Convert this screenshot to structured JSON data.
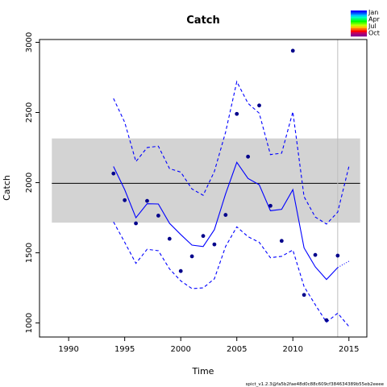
{
  "chart_data": {
    "type": "line",
    "title": "Catch",
    "xlabel": "Time",
    "ylabel": "Catch",
    "xlim": [
      1987.4,
      2016.6
    ],
    "ylim": [
      900,
      3020
    ],
    "x_ticks": [
      1990,
      1995,
      2000,
      2005,
      2010,
      2015
    ],
    "y_ticks": [
      1000,
      1500,
      2000,
      2500,
      3000
    ],
    "grid": false,
    "reference_line": 1995,
    "reference_band": [
      1715,
      2315
    ],
    "reference_band_x": [
      1988.5,
      2016.0
    ],
    "vertical_line_x": 2014,
    "colors": {
      "series": "#0000ff",
      "points": "#00008b",
      "band": "#d3d3d3",
      "vline": "#bebebe"
    },
    "series": [
      {
        "style": "solid",
        "x": [
          1994,
          1995,
          1996,
          1997,
          1998,
          1999,
          2000,
          2001,
          2002,
          2003,
          2004,
          2005,
          2006,
          2007,
          2008,
          2009,
          2010,
          2011,
          2012,
          2013,
          2014
        ],
        "values": [
          2115,
          1950,
          1750,
          1850,
          1848,
          1710,
          1630,
          1555,
          1545,
          1665,
          1920,
          2145,
          2030,
          1985,
          1800,
          1810,
          1950,
          1535,
          1400,
          1310,
          1395
        ]
      },
      {
        "style": "dotted",
        "x": [
          2014,
          2015
        ],
        "values": [
          1395,
          1440
        ]
      },
      {
        "style": "dashed",
        "x": [
          1994,
          1995,
          1996,
          1997,
          1998,
          1999,
          2000,
          2001,
          2002,
          2003,
          2004,
          2005,
          2006,
          2007,
          2008,
          2009,
          2010,
          2011,
          2012,
          2013,
          2014,
          2015
        ],
        "values": [
          2600,
          2430,
          2150,
          2250,
          2260,
          2100,
          2075,
          1955,
          1910,
          2080,
          2360,
          2720,
          2565,
          2495,
          2200,
          2210,
          2505,
          1900,
          1755,
          1705,
          1790,
          2115
        ]
      },
      {
        "style": "dashed",
        "x": [
          1994,
          1995,
          1996,
          1997,
          1998,
          1999,
          2000,
          2001,
          2002,
          2003,
          2004,
          2005,
          2006,
          2007,
          2008,
          2009,
          2010,
          2011,
          2012,
          2013,
          2014,
          2015
        ],
        "values": [
          1720,
          1575,
          1425,
          1525,
          1515,
          1385,
          1300,
          1245,
          1250,
          1315,
          1545,
          1685,
          1615,
          1575,
          1465,
          1475,
          1520,
          1260,
          1130,
          1005,
          1070,
          975
        ]
      }
    ],
    "points": {
      "x": [
        1994,
        1995,
        1996,
        1997,
        1998,
        1999,
        2000,
        2001,
        2002,
        2003,
        2004,
        2005,
        2006,
        2007,
        2008,
        2009,
        2010,
        2011,
        2012,
        2013,
        2014
      ],
      "values": [
        2065,
        1875,
        1710,
        1870,
        1765,
        1600,
        1370,
        1475,
        1620,
        1560,
        1770,
        2490,
        2185,
        2550,
        1835,
        1585,
        2940,
        1200,
        1485,
        1020,
        1480
      ]
    },
    "legend": {
      "placement": "top-right",
      "labels": [
        "Jan",
        "Apr",
        "Jul",
        "Oct"
      ],
      "colors": [
        "#0000ff",
        "#0060ff",
        "#00bfff",
        "#00ffbf",
        "#00ff60",
        "#00ff00",
        "#60ff00",
        "#bfff00",
        "#ffbf00",
        "#ff6000",
        "#ff0000",
        "#bf0060",
        "#8b008b"
      ]
    }
  },
  "footer": {
    "note": "spict_v1.2.3@fa5b2fae48d0c88c609cf384634389b55eb2eeee"
  }
}
